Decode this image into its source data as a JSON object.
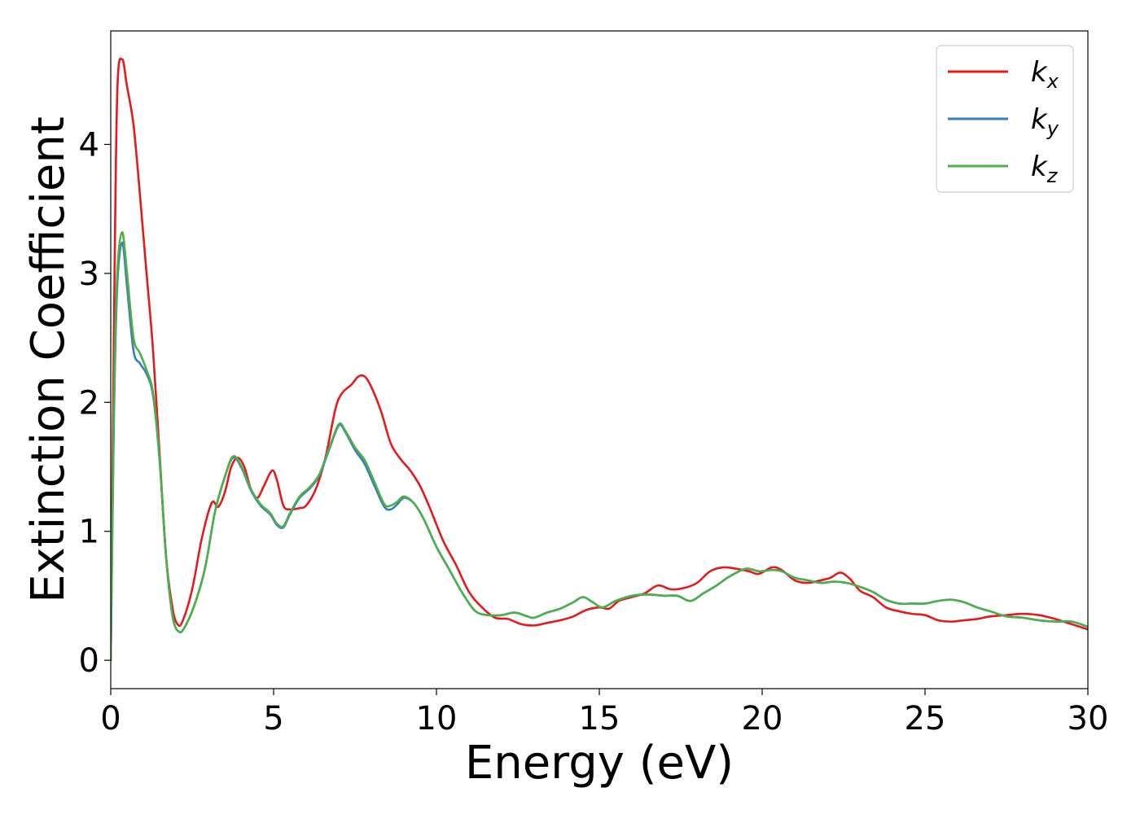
{
  "chart_data": {
    "type": "line",
    "title": "",
    "xlabel": "Energy (eV)",
    "ylabel": "Extinction Coefficient",
    "xlim": [
      0,
      30
    ],
    "ylim": [
      -0.22,
      4.88
    ],
    "xticks": [
      0,
      5,
      10,
      15,
      20,
      25,
      30
    ],
    "yticks": [
      0,
      1,
      2,
      3,
      4
    ],
    "grid": false,
    "legend_position": "top-right",
    "colors": {
      "k_x": "#e41a1c",
      "k_y": "#377eb8",
      "k_z": "#4daf4a"
    },
    "series": [
      {
        "name": "k_x",
        "legend_base": "k",
        "legend_sub": "x",
        "color": "#e41a1c",
        "points": [
          [
            0,
            0
          ],
          [
            0.1,
            2.6
          ],
          [
            0.2,
            4.4
          ],
          [
            0.35,
            4.66
          ],
          [
            0.5,
            4.45
          ],
          [
            0.7,
            4.15
          ],
          [
            0.9,
            3.6
          ],
          [
            1.1,
            3.0
          ],
          [
            1.3,
            2.4
          ],
          [
            1.5,
            1.6
          ],
          [
            1.7,
            0.8
          ],
          [
            1.9,
            0.4
          ],
          [
            2.05,
            0.28
          ],
          [
            2.2,
            0.3
          ],
          [
            2.5,
            0.55
          ],
          [
            2.8,
            0.95
          ],
          [
            3.1,
            1.22
          ],
          [
            3.3,
            1.19
          ],
          [
            3.5,
            1.3
          ],
          [
            3.7,
            1.5
          ],
          [
            3.9,
            1.57
          ],
          [
            4.1,
            1.5
          ],
          [
            4.3,
            1.33
          ],
          [
            4.5,
            1.26
          ],
          [
            4.7,
            1.35
          ],
          [
            4.95,
            1.47
          ],
          [
            5.1,
            1.4
          ],
          [
            5.3,
            1.2
          ],
          [
            5.5,
            1.17
          ],
          [
            5.8,
            1.18
          ],
          [
            6.0,
            1.2
          ],
          [
            6.3,
            1.33
          ],
          [
            6.6,
            1.58
          ],
          [
            6.9,
            1.95
          ],
          [
            7.1,
            2.07
          ],
          [
            7.4,
            2.14
          ],
          [
            7.6,
            2.2
          ],
          [
            7.8,
            2.2
          ],
          [
            8.0,
            2.12
          ],
          [
            8.3,
            1.93
          ],
          [
            8.6,
            1.68
          ],
          [
            8.9,
            1.56
          ],
          [
            9.2,
            1.47
          ],
          [
            9.5,
            1.35
          ],
          [
            9.8,
            1.18
          ],
          [
            10.2,
            0.93
          ],
          [
            10.6,
            0.74
          ],
          [
            11.0,
            0.53
          ],
          [
            11.4,
            0.41
          ],
          [
            11.8,
            0.33
          ],
          [
            12.2,
            0.32
          ],
          [
            12.6,
            0.28
          ],
          [
            13.0,
            0.27
          ],
          [
            13.4,
            0.29
          ],
          [
            13.8,
            0.31
          ],
          [
            14.2,
            0.34
          ],
          [
            14.6,
            0.39
          ],
          [
            15.0,
            0.41
          ],
          [
            15.3,
            0.4
          ],
          [
            15.6,
            0.46
          ],
          [
            16.0,
            0.49
          ],
          [
            16.4,
            0.52
          ],
          [
            16.8,
            0.58
          ],
          [
            17.2,
            0.55
          ],
          [
            17.6,
            0.56
          ],
          [
            18.0,
            0.6
          ],
          [
            18.4,
            0.69
          ],
          [
            18.8,
            0.72
          ],
          [
            19.2,
            0.71
          ],
          [
            19.6,
            0.69
          ],
          [
            19.9,
            0.67
          ],
          [
            20.3,
            0.72
          ],
          [
            20.6,
            0.7
          ],
          [
            21.0,
            0.62
          ],
          [
            21.4,
            0.6
          ],
          [
            21.8,
            0.62
          ],
          [
            22.1,
            0.64
          ],
          [
            22.4,
            0.68
          ],
          [
            22.7,
            0.63
          ],
          [
            23.0,
            0.54
          ],
          [
            23.4,
            0.49
          ],
          [
            23.8,
            0.41
          ],
          [
            24.2,
            0.38
          ],
          [
            24.6,
            0.36
          ],
          [
            25.0,
            0.35
          ],
          [
            25.4,
            0.31
          ],
          [
            25.8,
            0.3
          ],
          [
            26.2,
            0.31
          ],
          [
            26.6,
            0.32
          ],
          [
            27.0,
            0.34
          ],
          [
            27.5,
            0.35
          ],
          [
            28.0,
            0.36
          ],
          [
            28.5,
            0.35
          ],
          [
            29.0,
            0.32
          ],
          [
            29.5,
            0.28
          ],
          [
            30.0,
            0.24
          ]
        ]
      },
      {
        "name": "k_y",
        "legend_base": "k",
        "legend_sub": "y",
        "color": "#377eb8",
        "points": [
          [
            0,
            0
          ],
          [
            0.1,
            1.9
          ],
          [
            0.2,
            2.9
          ],
          [
            0.35,
            3.24
          ],
          [
            0.5,
            2.9
          ],
          [
            0.7,
            2.4
          ],
          [
            0.9,
            2.3
          ],
          [
            1.1,
            2.22
          ],
          [
            1.3,
            2.05
          ],
          [
            1.5,
            1.55
          ],
          [
            1.7,
            0.8
          ],
          [
            1.9,
            0.34
          ],
          [
            2.1,
            0.22
          ],
          [
            2.3,
            0.27
          ],
          [
            2.6,
            0.45
          ],
          [
            2.9,
            0.72
          ],
          [
            3.2,
            1.15
          ],
          [
            3.5,
            1.42
          ],
          [
            3.75,
            1.57
          ],
          [
            4.0,
            1.5
          ],
          [
            4.3,
            1.32
          ],
          [
            4.6,
            1.2
          ],
          [
            4.9,
            1.13
          ],
          [
            5.1,
            1.05
          ],
          [
            5.3,
            1.03
          ],
          [
            5.5,
            1.13
          ],
          [
            5.8,
            1.26
          ],
          [
            6.1,
            1.33
          ],
          [
            6.4,
            1.43
          ],
          [
            6.7,
            1.63
          ],
          [
            7.0,
            1.82
          ],
          [
            7.2,
            1.77
          ],
          [
            7.5,
            1.63
          ],
          [
            7.8,
            1.52
          ],
          [
            8.1,
            1.35
          ],
          [
            8.4,
            1.19
          ],
          [
            8.6,
            1.17
          ],
          [
            8.8,
            1.21
          ],
          [
            9.0,
            1.26
          ],
          [
            9.3,
            1.22
          ],
          [
            9.6,
            1.1
          ],
          [
            10.0,
            0.88
          ],
          [
            10.4,
            0.7
          ],
          [
            10.8,
            0.52
          ],
          [
            11.2,
            0.38
          ],
          [
            11.6,
            0.35
          ],
          [
            12.0,
            0.35
          ],
          [
            12.4,
            0.37
          ],
          [
            12.8,
            0.34
          ],
          [
            13.0,
            0.33
          ],
          [
            13.4,
            0.37
          ],
          [
            13.8,
            0.4
          ],
          [
            14.2,
            0.45
          ],
          [
            14.5,
            0.49
          ],
          [
            14.8,
            0.45
          ],
          [
            15.1,
            0.41
          ],
          [
            15.5,
            0.46
          ],
          [
            16.0,
            0.5
          ],
          [
            16.5,
            0.51
          ],
          [
            17.0,
            0.5
          ],
          [
            17.4,
            0.5
          ],
          [
            17.8,
            0.46
          ],
          [
            18.2,
            0.52
          ],
          [
            18.6,
            0.58
          ],
          [
            19.0,
            0.65
          ],
          [
            19.5,
            0.71
          ],
          [
            19.9,
            0.69
          ],
          [
            20.3,
            0.7
          ],
          [
            20.6,
            0.69
          ],
          [
            21.0,
            0.64
          ],
          [
            21.4,
            0.62
          ],
          [
            21.8,
            0.6
          ],
          [
            22.2,
            0.61
          ],
          [
            22.6,
            0.6
          ],
          [
            23.0,
            0.57
          ],
          [
            23.4,
            0.53
          ],
          [
            23.8,
            0.47
          ],
          [
            24.2,
            0.44
          ],
          [
            24.6,
            0.44
          ],
          [
            25.0,
            0.44
          ],
          [
            25.4,
            0.46
          ],
          [
            25.8,
            0.47
          ],
          [
            26.2,
            0.45
          ],
          [
            26.6,
            0.41
          ],
          [
            27.0,
            0.38
          ],
          [
            27.5,
            0.34
          ],
          [
            28.0,
            0.33
          ],
          [
            28.5,
            0.31
          ],
          [
            29.0,
            0.3
          ],
          [
            29.5,
            0.3
          ],
          [
            30.0,
            0.26
          ]
        ]
      },
      {
        "name": "k_z",
        "legend_base": "k",
        "legend_sub": "z",
        "color": "#4daf4a",
        "points": [
          [
            0,
            0
          ],
          [
            0.1,
            2.0
          ],
          [
            0.2,
            3.0
          ],
          [
            0.35,
            3.32
          ],
          [
            0.5,
            3.0
          ],
          [
            0.7,
            2.5
          ],
          [
            0.9,
            2.38
          ],
          [
            1.1,
            2.25
          ],
          [
            1.3,
            2.07
          ],
          [
            1.5,
            1.56
          ],
          [
            1.7,
            0.8
          ],
          [
            1.9,
            0.34
          ],
          [
            2.1,
            0.22
          ],
          [
            2.3,
            0.27
          ],
          [
            2.6,
            0.45
          ],
          [
            2.9,
            0.72
          ],
          [
            3.2,
            1.15
          ],
          [
            3.5,
            1.42
          ],
          [
            3.75,
            1.58
          ],
          [
            4.0,
            1.51
          ],
          [
            4.3,
            1.33
          ],
          [
            4.6,
            1.21
          ],
          [
            4.9,
            1.14
          ],
          [
            5.1,
            1.06
          ],
          [
            5.3,
            1.04
          ],
          [
            5.5,
            1.14
          ],
          [
            5.8,
            1.27
          ],
          [
            6.1,
            1.34
          ],
          [
            6.4,
            1.44
          ],
          [
            6.7,
            1.64
          ],
          [
            7.0,
            1.83
          ],
          [
            7.2,
            1.78
          ],
          [
            7.5,
            1.65
          ],
          [
            7.8,
            1.55
          ],
          [
            8.1,
            1.38
          ],
          [
            8.4,
            1.21
          ],
          [
            8.6,
            1.2
          ],
          [
            8.8,
            1.23
          ],
          [
            9.0,
            1.27
          ],
          [
            9.3,
            1.22
          ],
          [
            9.6,
            1.1
          ],
          [
            10.0,
            0.88
          ],
          [
            10.4,
            0.7
          ],
          [
            10.8,
            0.52
          ],
          [
            11.2,
            0.38
          ],
          [
            11.6,
            0.35
          ],
          [
            12.0,
            0.35
          ],
          [
            12.4,
            0.37
          ],
          [
            12.8,
            0.34
          ],
          [
            13.0,
            0.33
          ],
          [
            13.4,
            0.37
          ],
          [
            13.8,
            0.4
          ],
          [
            14.2,
            0.45
          ],
          [
            14.5,
            0.49
          ],
          [
            14.8,
            0.45
          ],
          [
            15.1,
            0.41
          ],
          [
            15.5,
            0.46
          ],
          [
            16.0,
            0.5
          ],
          [
            16.5,
            0.51
          ],
          [
            17.0,
            0.5
          ],
          [
            17.4,
            0.5
          ],
          [
            17.8,
            0.46
          ],
          [
            18.2,
            0.52
          ],
          [
            18.6,
            0.58
          ],
          [
            19.0,
            0.65
          ],
          [
            19.5,
            0.71
          ],
          [
            19.9,
            0.69
          ],
          [
            20.3,
            0.7
          ],
          [
            20.6,
            0.69
          ],
          [
            21.0,
            0.64
          ],
          [
            21.4,
            0.62
          ],
          [
            21.8,
            0.6
          ],
          [
            22.2,
            0.61
          ],
          [
            22.6,
            0.6
          ],
          [
            23.0,
            0.57
          ],
          [
            23.4,
            0.53
          ],
          [
            23.8,
            0.47
          ],
          [
            24.2,
            0.44
          ],
          [
            24.6,
            0.44
          ],
          [
            25.0,
            0.44
          ],
          [
            25.4,
            0.46
          ],
          [
            25.8,
            0.47
          ],
          [
            26.2,
            0.45
          ],
          [
            26.6,
            0.41
          ],
          [
            27.0,
            0.38
          ],
          [
            27.5,
            0.34
          ],
          [
            28.0,
            0.33
          ],
          [
            28.5,
            0.31
          ],
          [
            29.0,
            0.3
          ],
          [
            29.5,
            0.3
          ],
          [
            30.0,
            0.26
          ]
        ]
      }
    ]
  }
}
